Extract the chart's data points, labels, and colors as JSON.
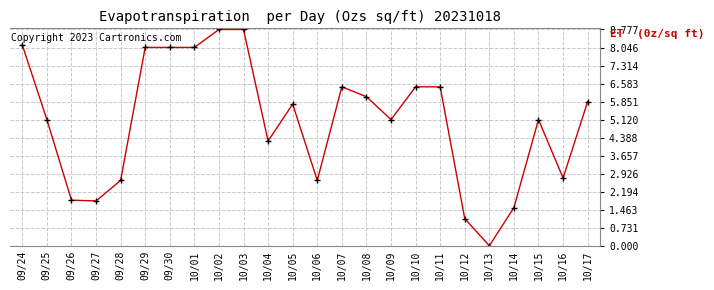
{
  "title": "Evapotranspiration  per Day (Ozs sq/ft) 20231018",
  "copyright": "Copyright 2023 Cartronics.com",
  "legend_label": "ET  (0z/sq ft)",
  "dates": [
    "09/24",
    "09/25",
    "09/26",
    "09/27",
    "09/28",
    "09/29",
    "09/30",
    "10/01",
    "10/02",
    "10/03",
    "10/04",
    "10/05",
    "10/06",
    "10/07",
    "10/08",
    "10/09",
    "10/10",
    "10/11",
    "10/12",
    "10/13",
    "10/14",
    "10/15",
    "10/16",
    "10/17"
  ],
  "values": [
    8.15,
    5.12,
    1.85,
    1.82,
    2.65,
    8.05,
    8.05,
    8.05,
    8.777,
    8.777,
    4.25,
    5.75,
    2.65,
    6.45,
    6.05,
    5.12,
    6.45,
    6.45,
    1.1,
    0.0,
    1.55,
    5.12,
    2.75,
    5.85
  ],
  "line_color": "#cc0000",
  "marker": "+",
  "marker_color": "#000000",
  "grid_color": "#c8c8c8",
  "background_color": "#ffffff",
  "title_color": "#000000",
  "copyright_color": "#000000",
  "legend_color": "#cc0000",
  "ylim_min": 0.0,
  "ylim_max": 8.777,
  "yticks": [
    0.0,
    0.731,
    1.463,
    2.194,
    2.926,
    3.657,
    4.388,
    5.12,
    5.851,
    6.583,
    7.314,
    8.046,
    8.777
  ],
  "title_fontsize": 10,
  "tick_fontsize": 7,
  "copyright_fontsize": 7,
  "legend_fontsize": 8
}
